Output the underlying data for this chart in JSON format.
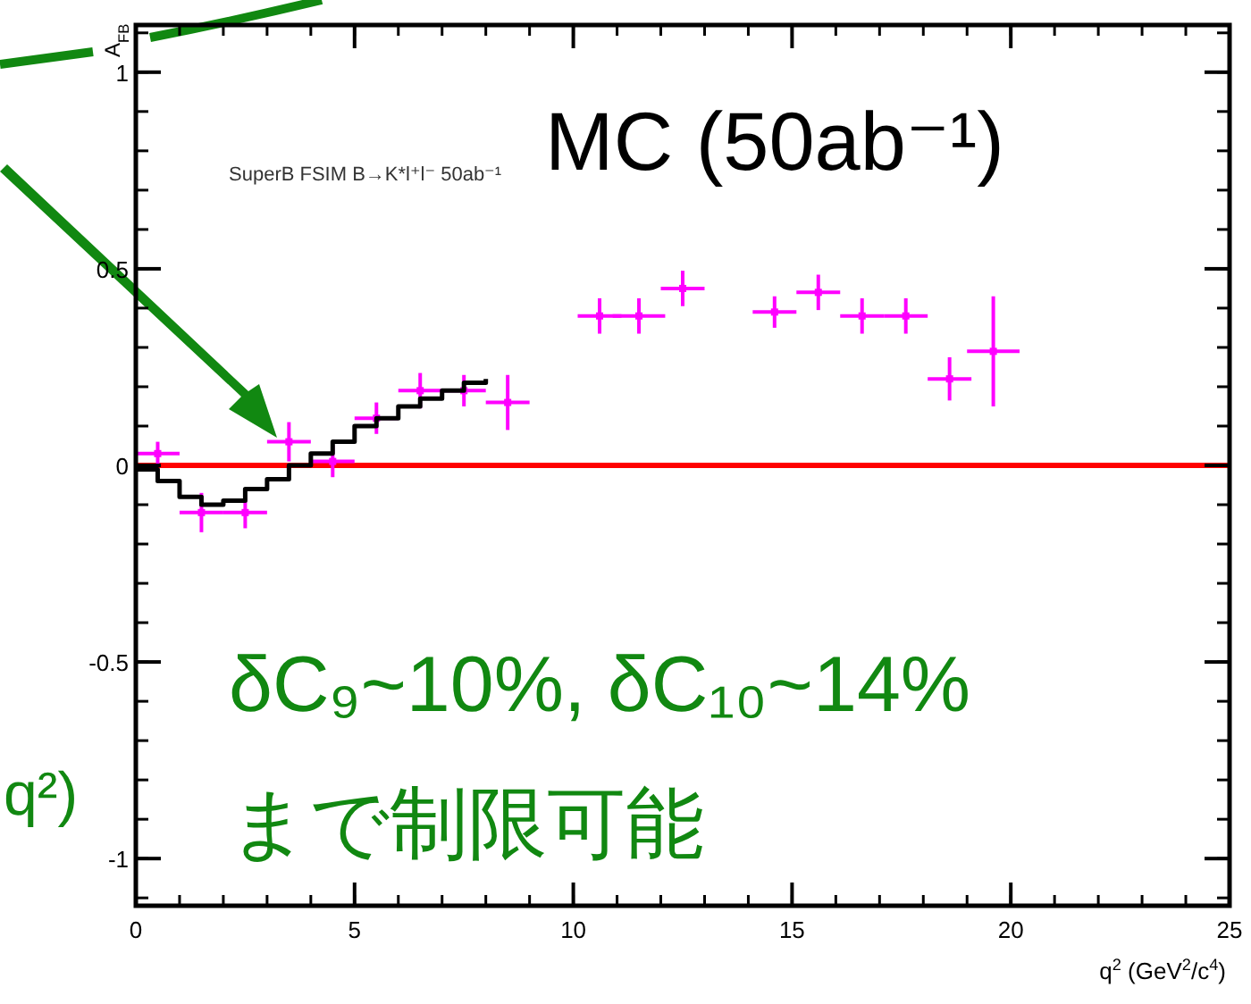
{
  "chart_data": {
    "type": "scatter",
    "xlabel": "q$^{2}$ (GeV$^{2}$/c$^{4}$)",
    "ylabel": "A$_{FB}$",
    "xlim": [
      0,
      25
    ],
    "ylim": [
      -1.12,
      1.12
    ],
    "xticks": [
      0,
      5,
      10,
      15,
      20,
      25
    ],
    "yticks": [
      {
        "value": -1,
        "label": "-1"
      },
      {
        "value": -0.5,
        "label": "-0.5"
      },
      0,
      0.5,
      1
    ],
    "ref_lines": [
      {
        "axis": "y",
        "value": 0,
        "color": "#ff0000"
      }
    ],
    "annotations": [
      "SuperB FSIM B→K*l⁺l⁻ 50ab⁻¹",
      "MC (50ab⁻¹)",
      "δC₉~10%, δC₁₀~14%",
      "まで制限可能",
      "q²)"
    ],
    "series": [
      {
        "color": "#ff00ff",
        "x": [
          0.5,
          1.5,
          2.5,
          3.5,
          4.5,
          5.5,
          6.5,
          7.5,
          8.5,
          10.6,
          11.5,
          12.5,
          14.6,
          15.6,
          16.6,
          17.6,
          18.6,
          19.6
        ],
        "values": [
          0.03,
          -0.12,
          -0.12,
          0.06,
          0.01,
          0.12,
          0.19,
          0.19,
          0.16,
          0.38,
          0.38,
          0.45,
          0.39,
          0.44,
          0.38,
          0.38,
          0.22,
          0.29
        ],
        "errors": [
          0.03,
          0.05,
          0.04,
          0.05,
          0.04,
          0.04,
          0.045,
          0.04,
          0.07,
          0.045,
          0.045,
          0.045,
          0.04,
          0.045,
          0.045,
          0.045,
          0.055,
          0.14
        ],
        "xerrors": [
          0.5,
          0.5,
          0.5,
          0.5,
          0.5,
          0.5,
          0.5,
          0.5,
          0.5,
          0.5,
          0.6,
          0.5,
          0.5,
          0.5,
          0.5,
          0.5,
          0.5,
          0.6
        ]
      },
      {
        "type": "step",
        "color": "#000000",
        "x": [
          0,
          0.5,
          1,
          1.5,
          2,
          2.5,
          3,
          3.5,
          4,
          4.5,
          5,
          5.5,
          6,
          6.5,
          7,
          7.5,
          8
        ],
        "values": [
          -0.01,
          -0.04,
          -0.08,
          -0.1,
          -0.09,
          -0.06,
          -0.035,
          0,
          0.03,
          0.06,
          0.1,
          0.12,
          0.15,
          0.17,
          0.19,
          0.21,
          0.22
        ]
      }
    ]
  }
}
